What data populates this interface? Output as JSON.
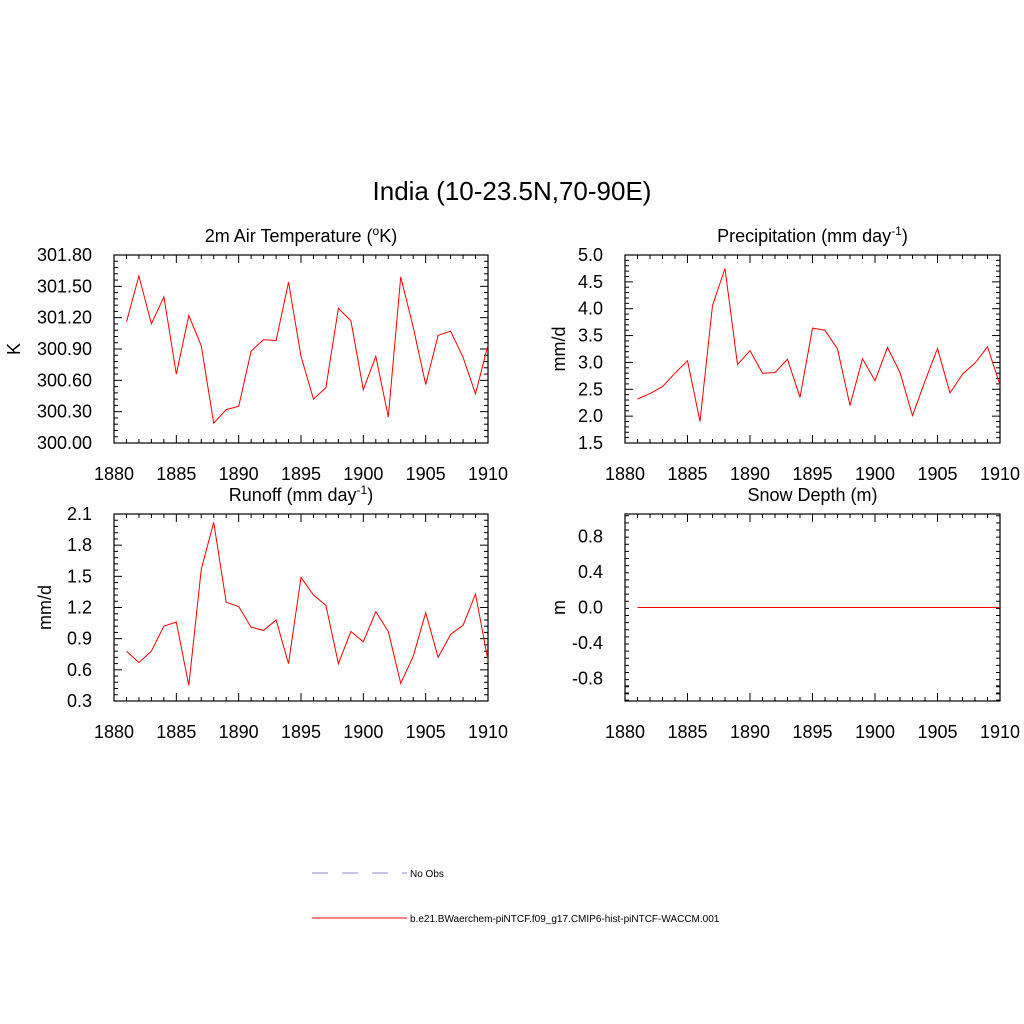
{
  "figure": {
    "title": "India (10-23.5N,70-90E)"
  },
  "colors": {
    "model_line": "#ff0000",
    "obs_line": "#a0a0e0",
    "axes": "#000000"
  },
  "legend": {
    "obs_label": "No Obs",
    "model_label": "b.e21.BWaerchem-piNTCF.f09_g17.CMIP6-hist-piNTCF-WACCM.001"
  },
  "chart_data": [
    {
      "type": "line",
      "title_main": "2m Air Temperature (",
      "title_sup_pre": "o",
      "title_post": "K)",
      "xlabel": "",
      "ylabel": "K",
      "xlim": [
        1880,
        1910
      ],
      "ylim": [
        300.0,
        301.8
      ],
      "xticks": [
        "1880",
        "1885",
        "1890",
        "1895",
        "1900",
        "1905",
        "1910"
      ],
      "yticks": [
        "300.00",
        "300.30",
        "300.60",
        "300.90",
        "301.20",
        "301.50",
        "301.80"
      ],
      "x": [
        1881,
        1882,
        1883,
        1884,
        1885,
        1886,
        1887,
        1888,
        1889,
        1890,
        1891,
        1892,
        1893,
        1894,
        1895,
        1896,
        1897,
        1898,
        1899,
        1900,
        1901,
        1902,
        1903,
        1904,
        1905,
        1906,
        1907,
        1908,
        1909,
        1910
      ],
      "series": [
        {
          "values": [
            301.16,
            301.6,
            301.14,
            301.4,
            300.66,
            301.22,
            300.93,
            300.19,
            300.32,
            300.35,
            300.88,
            300.99,
            300.98,
            301.54,
            300.83,
            300.42,
            300.53,
            301.29,
            301.17,
            300.51,
            300.83,
            300.25,
            301.59,
            301.11,
            300.56,
            301.03,
            301.07,
            300.82,
            300.47,
            300.94
          ]
        }
      ]
    },
    {
      "type": "line",
      "title_main": "Precipitation (mm day",
      "title_sup": "-1",
      "title_post": ")",
      "xlabel": "",
      "ylabel": "mm/d",
      "xlim": [
        1880,
        1910
      ],
      "ylim": [
        1.5,
        5.0
      ],
      "xticks": [
        "1880",
        "1885",
        "1890",
        "1895",
        "1900",
        "1905",
        "1910"
      ],
      "yticks": [
        "1.5",
        "2.0",
        "2.5",
        "3.0",
        "3.5",
        "4.0",
        "4.5",
        "5.0"
      ],
      "x": [
        1881,
        1882,
        1883,
        1884,
        1885,
        1886,
        1887,
        1888,
        1889,
        1890,
        1891,
        1892,
        1893,
        1894,
        1895,
        1896,
        1897,
        1898,
        1899,
        1900,
        1901,
        1902,
        1903,
        1904,
        1905,
        1906,
        1907,
        1908,
        1909,
        1910
      ],
      "series": [
        {
          "values": [
            2.32,
            2.42,
            2.55,
            2.8,
            3.03,
            1.9,
            4.06,
            4.75,
            2.96,
            3.22,
            2.8,
            2.81,
            3.06,
            2.35,
            3.64,
            3.6,
            3.25,
            2.2,
            3.07,
            2.66,
            3.28,
            2.81,
            2.01,
            2.65,
            3.26,
            2.43,
            2.78,
            2.99,
            3.29,
            2.58
          ]
        }
      ]
    },
    {
      "type": "line",
      "title_main": "Runoff (mm day",
      "title_sup": "-1",
      "title_post": ")",
      "xlabel": "",
      "ylabel": "mm/d",
      "xlim": [
        1880,
        1910
      ],
      "ylim": [
        0.3,
        2.1
      ],
      "xticks": [
        "1880",
        "1885",
        "1890",
        "1895",
        "1900",
        "1905",
        "1910"
      ],
      "yticks": [
        "0.3",
        "0.6",
        "0.9",
        "1.2",
        "1.5",
        "1.8",
        "2.1"
      ],
      "x": [
        1881,
        1882,
        1883,
        1884,
        1885,
        1886,
        1887,
        1888,
        1889,
        1890,
        1891,
        1892,
        1893,
        1894,
        1895,
        1896,
        1897,
        1898,
        1899,
        1900,
        1901,
        1902,
        1903,
        1904,
        1905,
        1906,
        1907,
        1908,
        1909,
        1910
      ],
      "series": [
        {
          "values": [
            0.78,
            0.67,
            0.78,
            1.02,
            1.06,
            0.45,
            1.57,
            2.02,
            1.25,
            1.21,
            1.01,
            0.98,
            1.08,
            0.66,
            1.49,
            1.32,
            1.22,
            0.66,
            0.97,
            0.87,
            1.16,
            0.97,
            0.47,
            0.73,
            1.15,
            0.72,
            0.94,
            1.03,
            1.33,
            0.69
          ]
        }
      ]
    },
    {
      "type": "line",
      "title_main": "Snow Depth (m)",
      "title_sup": "",
      "title_post": "",
      "xlabel": "",
      "ylabel": "m",
      "xlim": [
        1880,
        1910
      ],
      "ylim": [
        -1.05,
        1.05
      ],
      "xticks": [
        "1880",
        "1885",
        "1890",
        "1895",
        "1900",
        "1905",
        "1910"
      ],
      "yticks": [
        "-0.8",
        "-0.4",
        "0.0",
        "0.4",
        "0.8"
      ],
      "ytick_values": [
        -0.8,
        -0.4,
        0.0,
        0.4,
        0.8
      ],
      "x": [
        1881,
        1882,
        1883,
        1884,
        1885,
        1886,
        1887,
        1888,
        1889,
        1890,
        1891,
        1892,
        1893,
        1894,
        1895,
        1896,
        1897,
        1898,
        1899,
        1900,
        1901,
        1902,
        1903,
        1904,
        1905,
        1906,
        1907,
        1908,
        1909,
        1910
      ],
      "series": [
        {
          "values": [
            0,
            0,
            0,
            0,
            0,
            0,
            0,
            0,
            0,
            0,
            0,
            0,
            0,
            0,
            0,
            0,
            0,
            0,
            0,
            0,
            0,
            0,
            0,
            0,
            0,
            0,
            0,
            0,
            0,
            0
          ]
        }
      ]
    }
  ]
}
